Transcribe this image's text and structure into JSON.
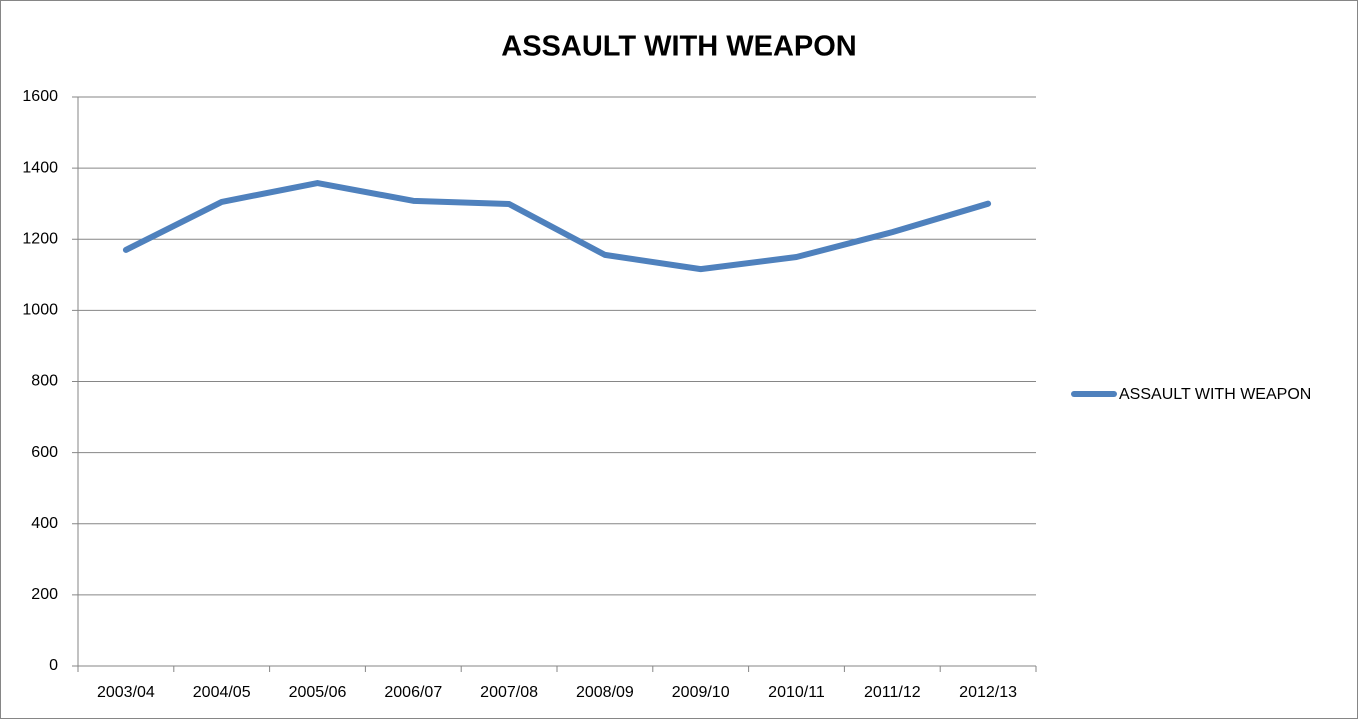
{
  "chart_data": {
    "type": "line",
    "title": "ASSAULT WITH WEAPON",
    "categories": [
      "2003/04",
      "2004/05",
      "2005/06",
      "2006/07",
      "2007/08",
      "2008/09",
      "2009/10",
      "2010/11",
      "2011/12",
      "2012/13"
    ],
    "series": [
      {
        "name": "ASSAULT WITH WEAPON",
        "color": "#4f81bd",
        "values": [
          1170,
          1305,
          1358,
          1308,
          1299,
          1156,
          1116,
          1150,
          1220,
          1300
        ]
      }
    ],
    "ylim": [
      0,
      1600
    ],
    "yticks": [
      0,
      200,
      400,
      600,
      800,
      1000,
      1200,
      1400,
      1600
    ],
    "grid": true,
    "legend": "right"
  }
}
